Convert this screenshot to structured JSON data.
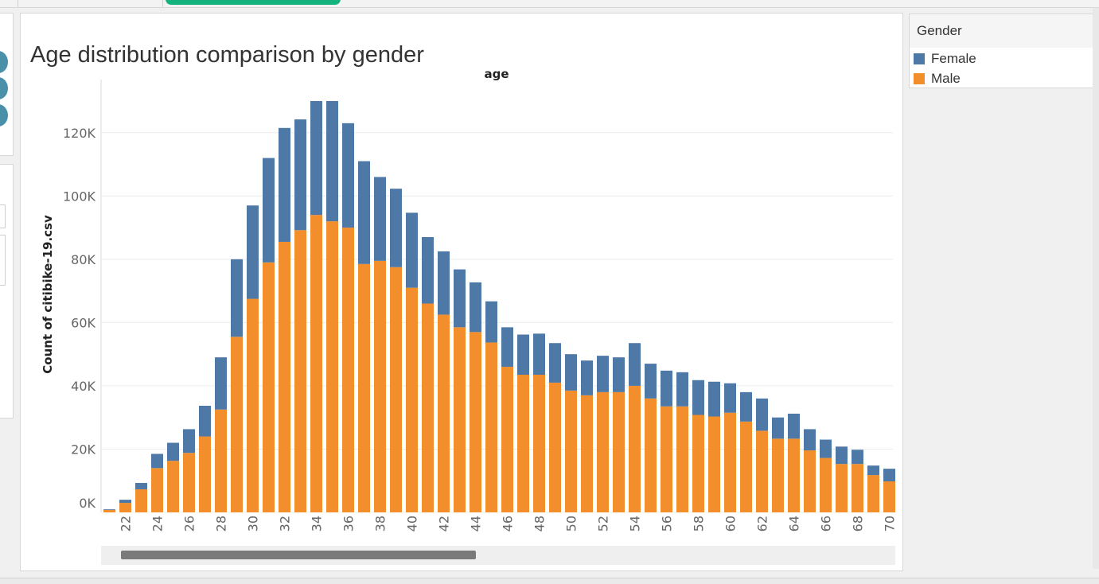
{
  "page": {
    "title": "Age distribution comparison by gender"
  },
  "legend": {
    "title": "Gender",
    "items": [
      {
        "label": "Female",
        "color": "#4e79a7"
      },
      {
        "label": "Male",
        "color": "#f28e2b"
      }
    ]
  },
  "chart_data": {
    "type": "bar",
    "stacked": true,
    "title": "Age distribution comparison by gender",
    "column_header": "age",
    "ylabel": "Count of citibike-19.csv",
    "xlabel": "",
    "ylim": [
      0,
      130000
    ],
    "yticks": [
      0,
      20000,
      40000,
      60000,
      80000,
      100000,
      120000
    ],
    "ytick_labels": [
      "0K",
      "20K",
      "40K",
      "60K",
      "80K",
      "100K",
      "120K"
    ],
    "categories": [
      21,
      22,
      23,
      24,
      25,
      26,
      27,
      28,
      29,
      30,
      31,
      32,
      33,
      34,
      35,
      36,
      37,
      38,
      39,
      40,
      41,
      42,
      43,
      44,
      45,
      46,
      47,
      48,
      49,
      50,
      51,
      52,
      53,
      54,
      55,
      56,
      57,
      58,
      59,
      60,
      61,
      62,
      63,
      64,
      65,
      66,
      67,
      68,
      69,
      70
    ],
    "xtick_labels": [
      "22",
      "24",
      "26",
      "28",
      "30",
      "32",
      "34",
      "36",
      "38",
      "40",
      "42",
      "44",
      "46",
      "48",
      "50",
      "52",
      "54",
      "56",
      "58",
      "60",
      "62",
      "64",
      "66",
      "68",
      "70"
    ],
    "series": [
      {
        "name": "Male",
        "color": "#f28e2b",
        "values": [
          800,
          3000,
          7300,
          14000,
          16300,
          18800,
          24000,
          32500,
          55500,
          67500,
          79000,
          85500,
          89200,
          94000,
          92000,
          90000,
          78500,
          79500,
          77500,
          71000,
          66000,
          62500,
          58500,
          57000,
          53700,
          46000,
          43500,
          43500,
          41000,
          38500,
          37000,
          38000,
          38000,
          40000,
          36000,
          33500,
          33500,
          30800,
          30300,
          31500,
          28700,
          25800,
          23300,
          23300,
          19600,
          17200,
          15300,
          15300,
          11800,
          9800
        ]
      },
      {
        "name": "Female",
        "color": "#4e79a7",
        "values": [
          200,
          1000,
          2000,
          4500,
          5700,
          7500,
          9700,
          16500,
          24500,
          29500,
          33000,
          36000,
          35000,
          36000,
          38000,
          33000,
          32500,
          26500,
          24800,
          23700,
          21000,
          20000,
          18300,
          15700,
          13000,
          12500,
          12700,
          13000,
          12500,
          11500,
          11000,
          11500,
          11000,
          13500,
          11000,
          11300,
          10800,
          11000,
          11000,
          9300,
          9300,
          10200,
          6700,
          7900,
          6700,
          5800,
          5500,
          4500,
          3000,
          4000
        ]
      }
    ]
  }
}
